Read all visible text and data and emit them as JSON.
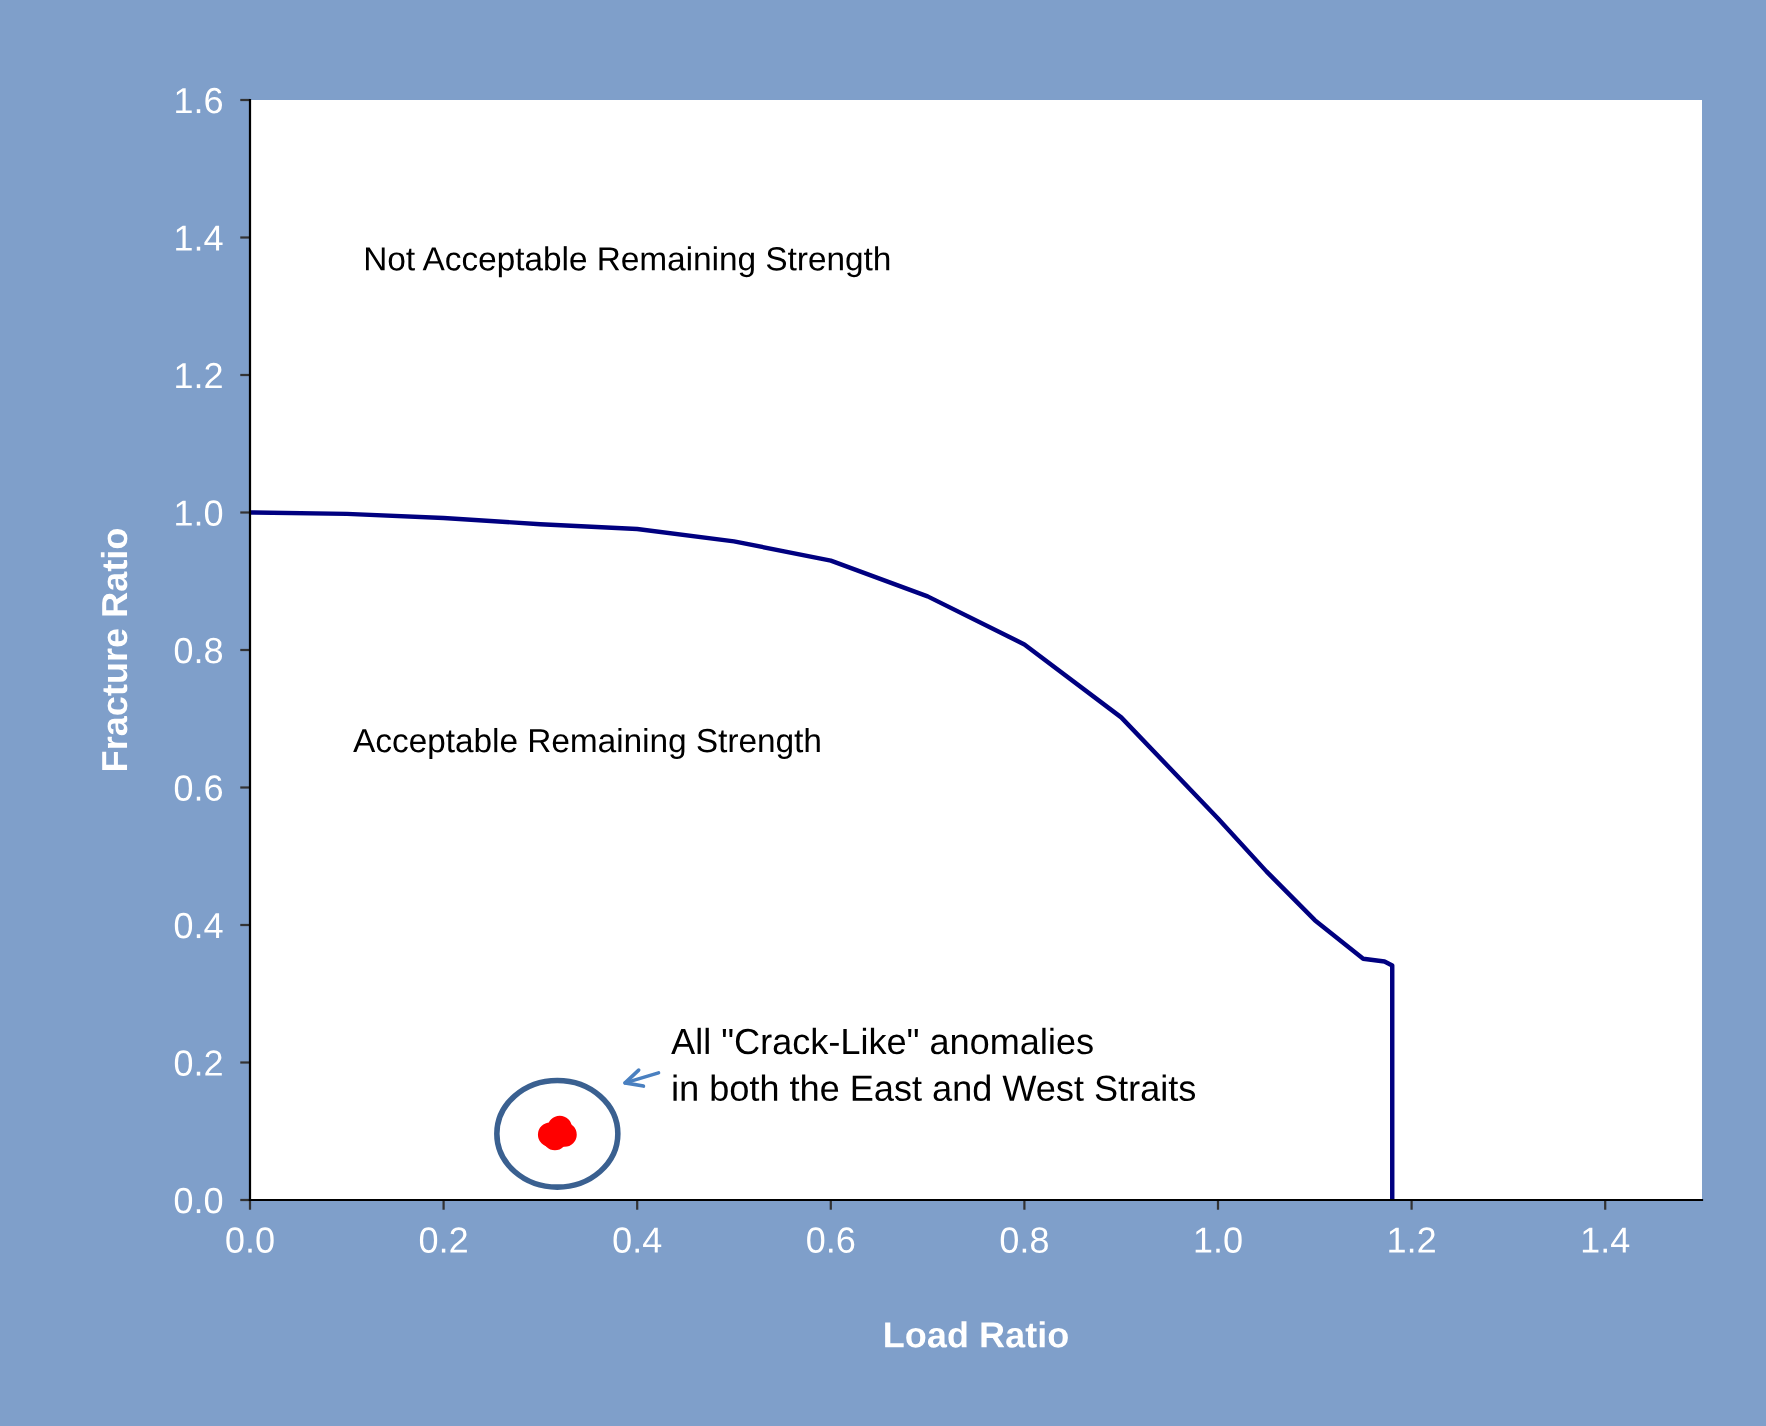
{
  "chart_data": {
    "type": "line",
    "xlabel": "Load Ratio",
    "ylabel": "Fracture Ratio",
    "xlim": [
      0,
      1.5
    ],
    "ylim": [
      0,
      1.6
    ],
    "xticks": [
      {
        "value": 0,
        "label": "0.0"
      },
      0.2,
      0.4,
      0.6,
      0.8,
      {
        "value": 1,
        "label": "1.0"
      },
      1.2,
      1.4
    ],
    "yticks": [
      {
        "value": 0,
        "label": "0.0"
      },
      0.2,
      0.4,
      0.6,
      0.8,
      {
        "value": 1,
        "label": "1.0"
      },
      1.2,
      1.4,
      1.6
    ],
    "grid": false,
    "series": [
      {
        "color": "#000080",
        "marker": "none",
        "x": [
          0,
          0.1,
          0.2,
          0.3,
          0.4,
          0.5,
          0.6,
          0.7,
          0.8,
          0.9,
          1.0,
          1.05,
          1.1,
          1.15,
          1.172,
          1.18,
          1.18
        ],
        "values": [
          1.0,
          0.998,
          0.992,
          0.983,
          0.976,
          0.958,
          0.93,
          0.878,
          0.808,
          0.702,
          0.555,
          0.478,
          0.407,
          0.351,
          0.347,
          0.341,
          0
        ]
      },
      {
        "type": "scatter",
        "color": "#ff0000",
        "marker": "circle",
        "x": [
          0.31,
          0.32,
          0.325,
          0.315
        ],
        "values": [
          0.095,
          0.105,
          0.095,
          0.09
        ]
      }
    ],
    "annotations": [
      "Not Acceptable Remaining Strength",
      "Acceptable Remaining Strength",
      "All \"Crack-Like\" anomalies\nin both the East and West Straits"
    ]
  }
}
